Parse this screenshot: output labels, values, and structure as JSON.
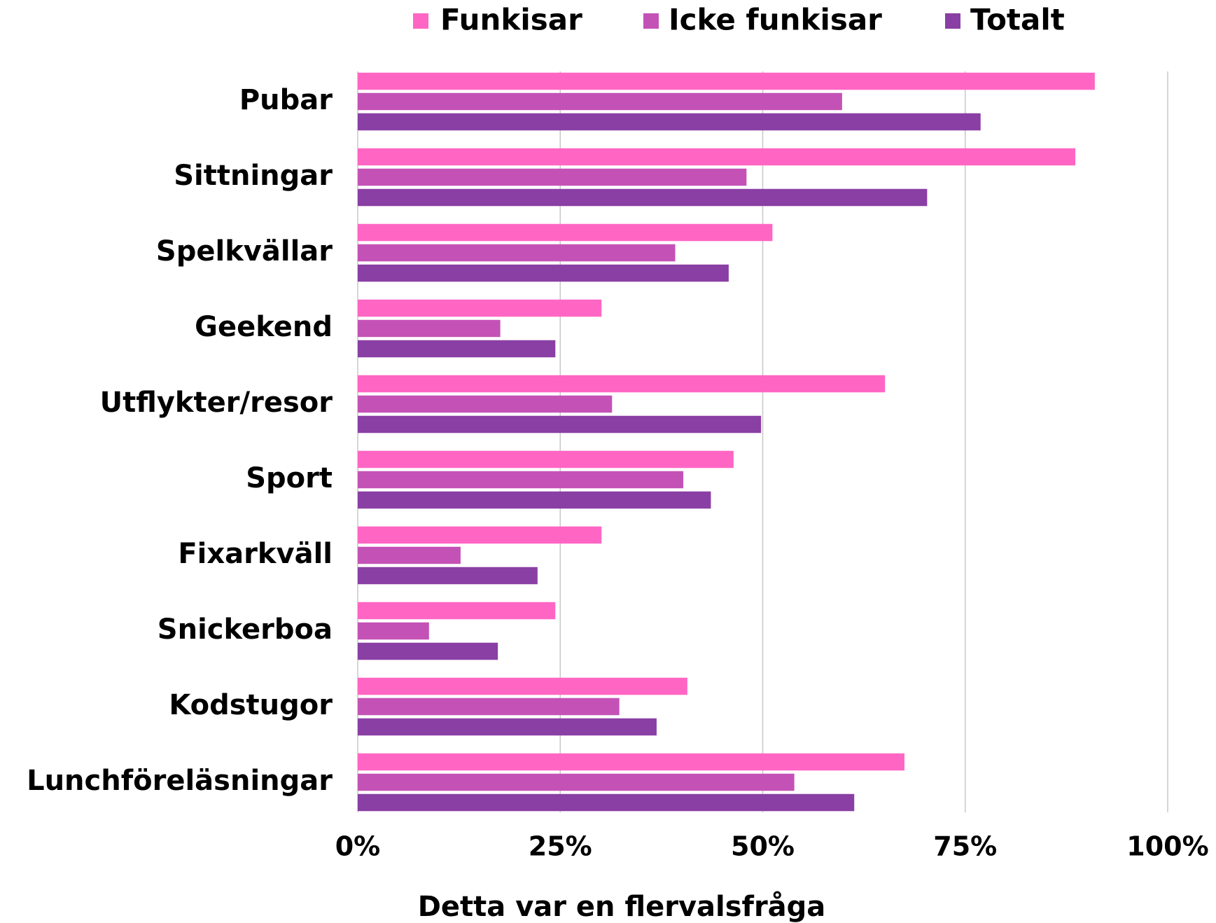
{
  "chart_data": {
    "type": "bar",
    "orientation": "horizontal",
    "x_label": "Detta var en flervalsfråga",
    "categories": [
      "Pubar",
      "Sittningar",
      "Spelkvällar",
      "Geekend",
      "Utflykter/resor",
      "Sport",
      "Fixarkväll",
      "Snickerboa",
      "Kodstugor",
      "Lunchföreläsningar"
    ],
    "series": [
      {
        "name": "Funkisar",
        "color": "#ff66c4",
        "values": [
          91.0,
          88.6,
          51.2,
          30.1,
          65.1,
          46.4,
          30.1,
          24.4,
          40.7,
          67.5
        ]
      },
      {
        "name": "Icke funkisar",
        "color": "#c452b6",
        "values": [
          59.8,
          48.0,
          39.2,
          17.6,
          31.4,
          40.2,
          12.7,
          8.8,
          32.3,
          53.9
        ]
      },
      {
        "name": "Totalt",
        "color": "#8a3fa4",
        "values": [
          76.9,
          70.3,
          45.8,
          24.4,
          49.8,
          43.6,
          22.2,
          17.3,
          36.9,
          61.3
        ]
      }
    ],
    "xlim": [
      0,
      100
    ],
    "xticks": [
      {
        "value": 0,
        "label": "0%"
      },
      {
        "value": 25,
        "label": "25%"
      },
      {
        "value": 50,
        "label": "50%"
      },
      {
        "value": 75,
        "label": "75%"
      },
      {
        "value": 100,
        "label": "100%"
      }
    ],
    "grid": true,
    "legend": "top"
  }
}
